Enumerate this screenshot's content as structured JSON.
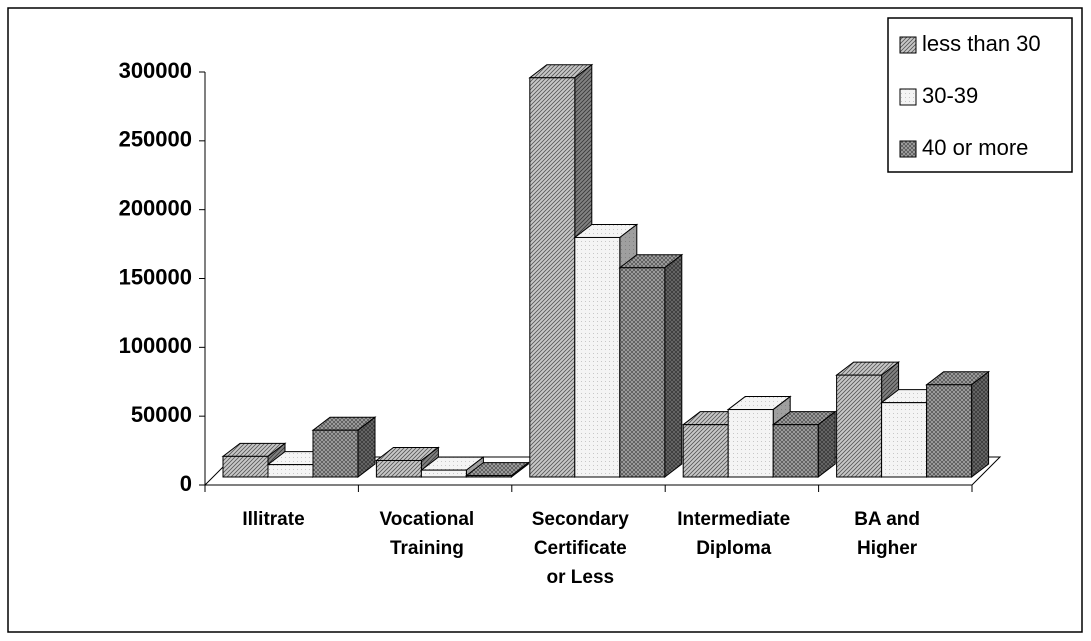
{
  "chart_data": {
    "type": "bar3d",
    "categories": [
      "Illitrate",
      "Vocational\nTraining",
      "Secondary\nCertificate\nor Less",
      "Intermediate\nDiploma",
      "BA and\nHigher"
    ],
    "series": [
      {
        "name": "less than 30",
        "color": "#c8c8c8",
        "values": [
          15000,
          12000,
          290000,
          38000,
          74000
        ]
      },
      {
        "name": "30-39",
        "color": "#f4f4f4",
        "values": [
          9000,
          5000,
          174000,
          49000,
          54000
        ]
      },
      {
        "name": "40 or more",
        "color": "#a8a8a8",
        "values": [
          34000,
          1000,
          152000,
          38000,
          67000
        ]
      }
    ],
    "ylim": [
      0,
      300000
    ],
    "yticks": [
      0,
      50000,
      100000,
      150000,
      200000,
      250000,
      300000
    ],
    "legend": "top-right"
  }
}
